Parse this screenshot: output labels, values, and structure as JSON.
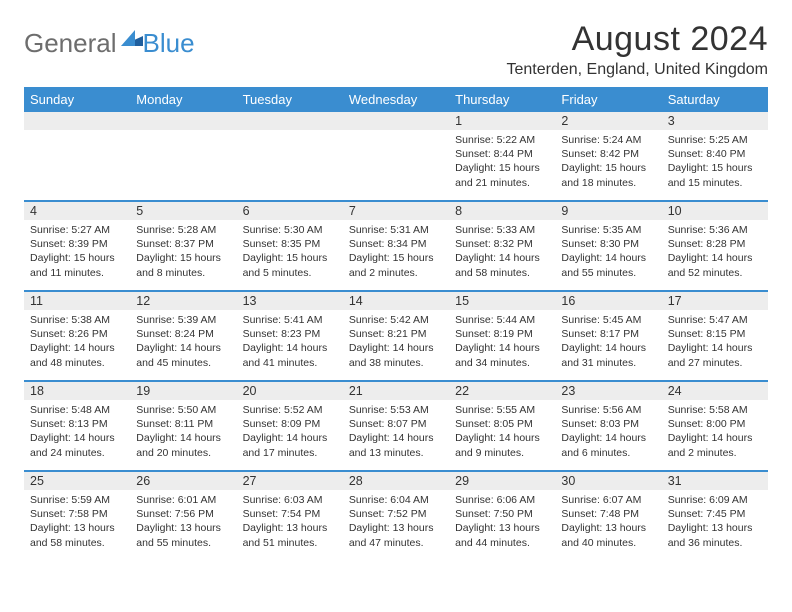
{
  "logo": {
    "general": "General",
    "blue": "Blue"
  },
  "title": "August 2024",
  "location": "Tenterden, England, United Kingdom",
  "colors": {
    "header_bg": "#3a8dd0",
    "daynum_bg": "#ededed",
    "text": "#333333",
    "logo_gray": "#6d6d6d",
    "logo_blue": "#3a8dd0",
    "page_bg": "#ffffff"
  },
  "day_labels": [
    "Sunday",
    "Monday",
    "Tuesday",
    "Wednesday",
    "Thursday",
    "Friday",
    "Saturday"
  ],
  "weeks": [
    [
      {
        "blank": true
      },
      {
        "blank": true
      },
      {
        "blank": true
      },
      {
        "blank": true
      },
      {
        "n": "1",
        "sunrise": "Sunrise: 5:22 AM",
        "sunset": "Sunset: 8:44 PM",
        "daylight1": "Daylight: 15 hours",
        "daylight2": "and 21 minutes."
      },
      {
        "n": "2",
        "sunrise": "Sunrise: 5:24 AM",
        "sunset": "Sunset: 8:42 PM",
        "daylight1": "Daylight: 15 hours",
        "daylight2": "and 18 minutes."
      },
      {
        "n": "3",
        "sunrise": "Sunrise: 5:25 AM",
        "sunset": "Sunset: 8:40 PM",
        "daylight1": "Daylight: 15 hours",
        "daylight2": "and 15 minutes."
      }
    ],
    [
      {
        "n": "4",
        "sunrise": "Sunrise: 5:27 AM",
        "sunset": "Sunset: 8:39 PM",
        "daylight1": "Daylight: 15 hours",
        "daylight2": "and 11 minutes."
      },
      {
        "n": "5",
        "sunrise": "Sunrise: 5:28 AM",
        "sunset": "Sunset: 8:37 PM",
        "daylight1": "Daylight: 15 hours",
        "daylight2": "and 8 minutes."
      },
      {
        "n": "6",
        "sunrise": "Sunrise: 5:30 AM",
        "sunset": "Sunset: 8:35 PM",
        "daylight1": "Daylight: 15 hours",
        "daylight2": "and 5 minutes."
      },
      {
        "n": "7",
        "sunrise": "Sunrise: 5:31 AM",
        "sunset": "Sunset: 8:34 PM",
        "daylight1": "Daylight: 15 hours",
        "daylight2": "and 2 minutes."
      },
      {
        "n": "8",
        "sunrise": "Sunrise: 5:33 AM",
        "sunset": "Sunset: 8:32 PM",
        "daylight1": "Daylight: 14 hours",
        "daylight2": "and 58 minutes."
      },
      {
        "n": "9",
        "sunrise": "Sunrise: 5:35 AM",
        "sunset": "Sunset: 8:30 PM",
        "daylight1": "Daylight: 14 hours",
        "daylight2": "and 55 minutes."
      },
      {
        "n": "10",
        "sunrise": "Sunrise: 5:36 AM",
        "sunset": "Sunset: 8:28 PM",
        "daylight1": "Daylight: 14 hours",
        "daylight2": "and 52 minutes."
      }
    ],
    [
      {
        "n": "11",
        "sunrise": "Sunrise: 5:38 AM",
        "sunset": "Sunset: 8:26 PM",
        "daylight1": "Daylight: 14 hours",
        "daylight2": "and 48 minutes."
      },
      {
        "n": "12",
        "sunrise": "Sunrise: 5:39 AM",
        "sunset": "Sunset: 8:24 PM",
        "daylight1": "Daylight: 14 hours",
        "daylight2": "and 45 minutes."
      },
      {
        "n": "13",
        "sunrise": "Sunrise: 5:41 AM",
        "sunset": "Sunset: 8:23 PM",
        "daylight1": "Daylight: 14 hours",
        "daylight2": "and 41 minutes."
      },
      {
        "n": "14",
        "sunrise": "Sunrise: 5:42 AM",
        "sunset": "Sunset: 8:21 PM",
        "daylight1": "Daylight: 14 hours",
        "daylight2": "and 38 minutes."
      },
      {
        "n": "15",
        "sunrise": "Sunrise: 5:44 AM",
        "sunset": "Sunset: 8:19 PM",
        "daylight1": "Daylight: 14 hours",
        "daylight2": "and 34 minutes."
      },
      {
        "n": "16",
        "sunrise": "Sunrise: 5:45 AM",
        "sunset": "Sunset: 8:17 PM",
        "daylight1": "Daylight: 14 hours",
        "daylight2": "and 31 minutes."
      },
      {
        "n": "17",
        "sunrise": "Sunrise: 5:47 AM",
        "sunset": "Sunset: 8:15 PM",
        "daylight1": "Daylight: 14 hours",
        "daylight2": "and 27 minutes."
      }
    ],
    [
      {
        "n": "18",
        "sunrise": "Sunrise: 5:48 AM",
        "sunset": "Sunset: 8:13 PM",
        "daylight1": "Daylight: 14 hours",
        "daylight2": "and 24 minutes."
      },
      {
        "n": "19",
        "sunrise": "Sunrise: 5:50 AM",
        "sunset": "Sunset: 8:11 PM",
        "daylight1": "Daylight: 14 hours",
        "daylight2": "and 20 minutes."
      },
      {
        "n": "20",
        "sunrise": "Sunrise: 5:52 AM",
        "sunset": "Sunset: 8:09 PM",
        "daylight1": "Daylight: 14 hours",
        "daylight2": "and 17 minutes."
      },
      {
        "n": "21",
        "sunrise": "Sunrise: 5:53 AM",
        "sunset": "Sunset: 8:07 PM",
        "daylight1": "Daylight: 14 hours",
        "daylight2": "and 13 minutes."
      },
      {
        "n": "22",
        "sunrise": "Sunrise: 5:55 AM",
        "sunset": "Sunset: 8:05 PM",
        "daylight1": "Daylight: 14 hours",
        "daylight2": "and 9 minutes."
      },
      {
        "n": "23",
        "sunrise": "Sunrise: 5:56 AM",
        "sunset": "Sunset: 8:03 PM",
        "daylight1": "Daylight: 14 hours",
        "daylight2": "and 6 minutes."
      },
      {
        "n": "24",
        "sunrise": "Sunrise: 5:58 AM",
        "sunset": "Sunset: 8:00 PM",
        "daylight1": "Daylight: 14 hours",
        "daylight2": "and 2 minutes."
      }
    ],
    [
      {
        "n": "25",
        "sunrise": "Sunrise: 5:59 AM",
        "sunset": "Sunset: 7:58 PM",
        "daylight1": "Daylight: 13 hours",
        "daylight2": "and 58 minutes."
      },
      {
        "n": "26",
        "sunrise": "Sunrise: 6:01 AM",
        "sunset": "Sunset: 7:56 PM",
        "daylight1": "Daylight: 13 hours",
        "daylight2": "and 55 minutes."
      },
      {
        "n": "27",
        "sunrise": "Sunrise: 6:03 AM",
        "sunset": "Sunset: 7:54 PM",
        "daylight1": "Daylight: 13 hours",
        "daylight2": "and 51 minutes."
      },
      {
        "n": "28",
        "sunrise": "Sunrise: 6:04 AM",
        "sunset": "Sunset: 7:52 PM",
        "daylight1": "Daylight: 13 hours",
        "daylight2": "and 47 minutes."
      },
      {
        "n": "29",
        "sunrise": "Sunrise: 6:06 AM",
        "sunset": "Sunset: 7:50 PM",
        "daylight1": "Daylight: 13 hours",
        "daylight2": "and 44 minutes."
      },
      {
        "n": "30",
        "sunrise": "Sunrise: 6:07 AM",
        "sunset": "Sunset: 7:48 PM",
        "daylight1": "Daylight: 13 hours",
        "daylight2": "and 40 minutes."
      },
      {
        "n": "31",
        "sunrise": "Sunrise: 6:09 AM",
        "sunset": "Sunset: 7:45 PM",
        "daylight1": "Daylight: 13 hours",
        "daylight2": "and 36 minutes."
      }
    ]
  ]
}
